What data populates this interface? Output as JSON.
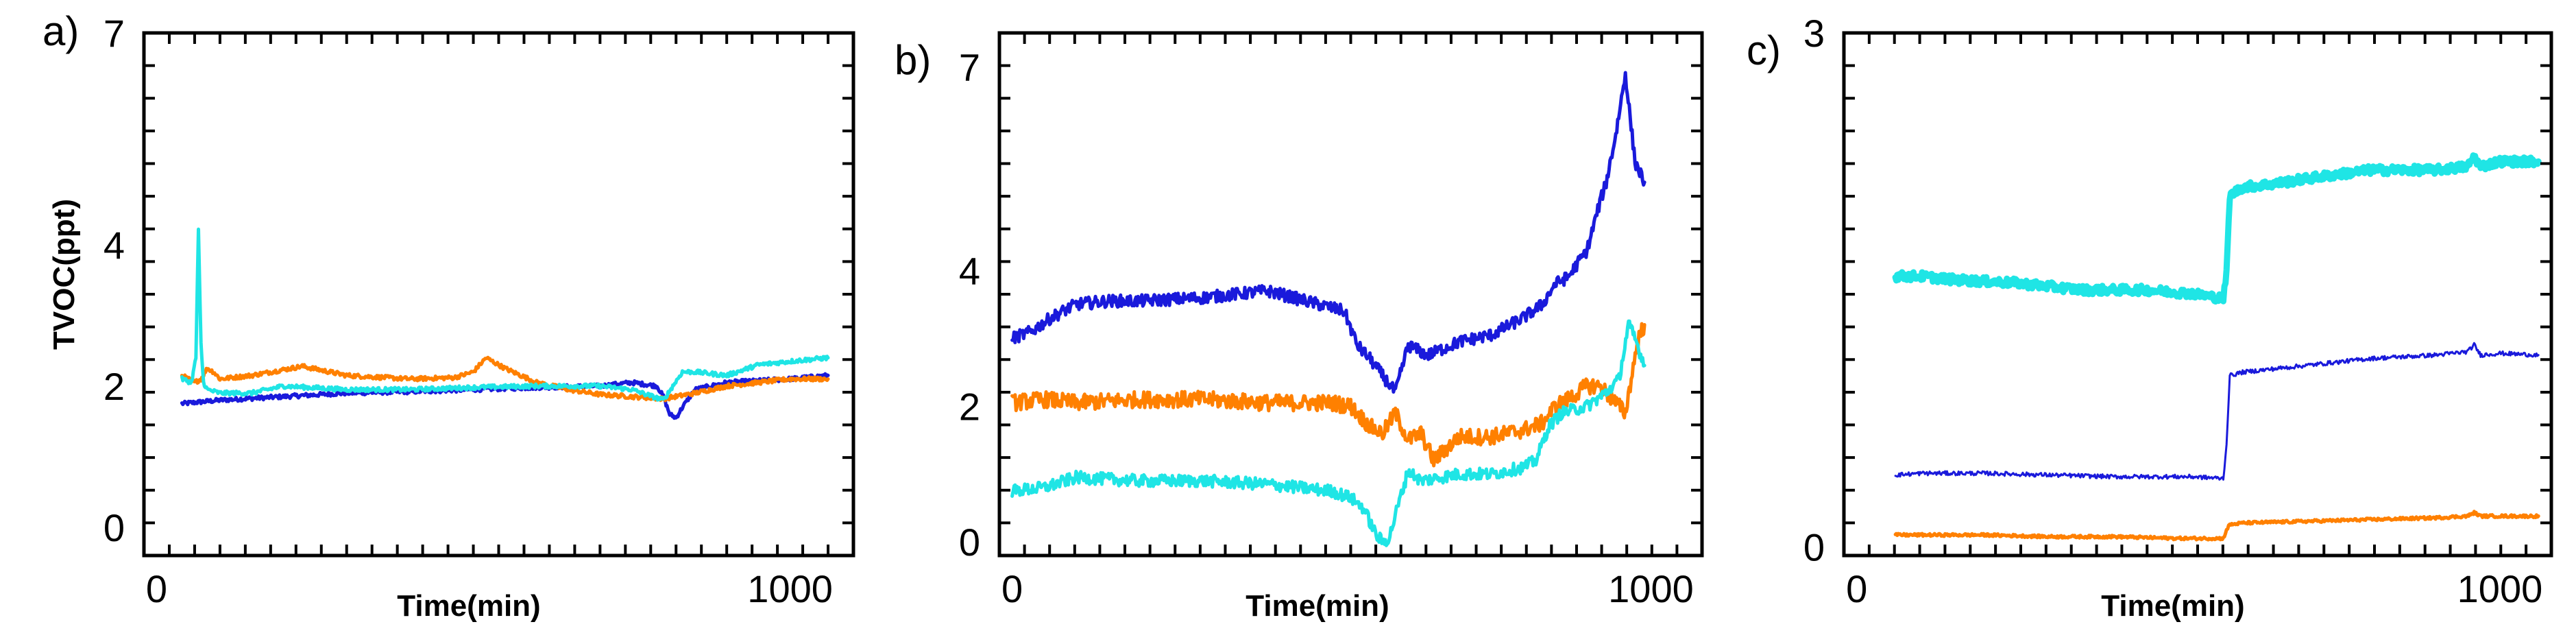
{
  "chart_data": [
    {
      "panel": "a)",
      "type": "line",
      "xlabel": "Time(min)",
      "ylabel": "TVOC(ppt)",
      "xlim": [
        -20,
        1100
      ],
      "ylim": [
        -0.4,
        7.0
      ],
      "xticks": [
        0,
        1000
      ],
      "yticks": [
        0,
        2,
        4,
        7
      ],
      "grid": false,
      "series": [
        {
          "color": "#1a1adb",
          "noise": 0.03,
          "width": 5,
          "x": [
            40,
            100,
            200,
            300,
            400,
            500,
            600,
            700,
            750,
            790,
            800,
            810,
            820,
            830,
            850,
            900,
            1000,
            1060
          ],
          "y": [
            1.75,
            1.8,
            1.85,
            1.9,
            1.92,
            1.95,
            1.98,
            2.0,
            2.05,
            2.0,
            1.85,
            1.6,
            1.55,
            1.7,
            1.95,
            2.05,
            2.1,
            2.15
          ]
        },
        {
          "color": "#ff8000",
          "noise": 0.03,
          "width": 5,
          "x": [
            40,
            60,
            70,
            80,
            90,
            100,
            150,
            230,
            300,
            400,
            470,
            500,
            520,
            550,
            600,
            650,
            700,
            750,
            800,
            850,
            900,
            1000,
            1060
          ],
          "y": [
            2.15,
            2.05,
            2.1,
            2.25,
            2.2,
            2.1,
            2.15,
            2.28,
            2.15,
            2.1,
            2.12,
            2.2,
            2.4,
            2.25,
            2.05,
            1.95,
            1.88,
            1.85,
            1.82,
            1.9,
            2.0,
            2.1,
            2.1
          ]
        },
        {
          "color": "#1fe5e5",
          "noise": 0.03,
          "width": 5,
          "x": [
            40,
            55,
            62,
            66,
            70,
            74,
            80,
            100,
            150,
            200,
            300,
            400,
            500,
            600,
            700,
            750,
            800,
            830,
            850,
            900,
            950,
            1000,
            1060
          ],
          "y": [
            2.1,
            2.05,
            2.4,
            4.2,
            2.6,
            2.05,
            1.95,
            1.9,
            1.9,
            2.0,
            1.95,
            1.95,
            1.98,
            2.0,
            2.0,
            1.95,
            1.8,
            2.2,
            2.2,
            2.15,
            2.3,
            2.35,
            2.4
          ]
        }
      ]
    },
    {
      "panel": "b)",
      "type": "line",
      "xlabel": "Time(min)",
      "ylabel": "",
      "xlim": [
        -20,
        1080
      ],
      "ylim": [
        -0.2,
        7.5
      ],
      "xticks": [
        0,
        1000
      ],
      "yticks": [
        0,
        2,
        4,
        7
      ],
      "grid": false,
      "series": [
        {
          "color": "#1a1adb",
          "noise": 0.09,
          "width": 5,
          "x": [
            0,
            30,
            60,
            100,
            150,
            200,
            300,
            400,
            500,
            520,
            540,
            560,
            580,
            600,
            620,
            650,
            700,
            750,
            800,
            830,
            850,
            870,
            900,
            920,
            930,
            945,
            960,
            975,
            990
          ],
          "y": [
            3.0,
            3.1,
            3.3,
            3.5,
            3.55,
            3.55,
            3.6,
            3.7,
            3.45,
            3.4,
            2.9,
            2.7,
            2.45,
            2.2,
            2.9,
            2.75,
            2.95,
            3.05,
            3.3,
            3.5,
            3.8,
            3.9,
            4.3,
            5.0,
            5.3,
            6.0,
            6.9,
            5.6,
            5.3
          ]
        },
        {
          "color": "#ff8000",
          "noise": 0.12,
          "width": 5,
          "x": [
            0,
            50,
            100,
            200,
            300,
            400,
            500,
            530,
            560,
            580,
            600,
            620,
            640,
            660,
            700,
            750,
            800,
            830,
            850,
            870,
            900,
            920,
            940,
            960,
            980,
            990
          ],
          "y": [
            2.05,
            2.1,
            2.05,
            2.1,
            2.1,
            2.05,
            2.05,
            2.0,
            1.7,
            1.6,
            1.9,
            1.5,
            1.6,
            1.2,
            1.55,
            1.55,
            1.65,
            1.75,
            2.0,
            2.1,
            2.3,
            2.3,
            2.1,
            1.9,
            3.0,
            3.2
          ]
        },
        {
          "color": "#1fe5e5",
          "noise": 0.09,
          "width": 5,
          "x": [
            0,
            50,
            100,
            200,
            300,
            400,
            500,
            530,
            550,
            570,
            580,
            590,
            600,
            620,
            640,
            700,
            750,
            800,
            820,
            840,
            860,
            900,
            930,
            950,
            965,
            975,
            990
          ],
          "y": [
            0.75,
            0.8,
            0.95,
            0.9,
            0.9,
            0.85,
            0.75,
            0.65,
            0.5,
            0.1,
            0.0,
            0.05,
            0.4,
            1.05,
            0.9,
            1.0,
            1.0,
            1.1,
            1.2,
            1.7,
            1.9,
            2.0,
            2.2,
            2.4,
            3.2,
            3.0,
            2.6
          ]
        }
      ]
    },
    {
      "panel": "c)",
      "type": "line",
      "xlabel": "Time(min)",
      "ylabel": "",
      "xlim": [
        -20,
        1080
      ],
      "ylim": [
        -0.05,
        3.0
      ],
      "xticks": [
        0,
        1000
      ],
      "yticks": [
        0,
        3
      ],
      "grid": false,
      "series": [
        {
          "color": "#1fe5e5",
          "noise": 0.025,
          "width": 9,
          "x": [
            60,
            100,
            150,
            200,
            250,
            300,
            350,
            400,
            450,
            520,
            570,
            575,
            580,
            600,
            650,
            700,
            800,
            900,
            950,
            960,
            970,
            1000,
            1060
          ],
          "y": [
            1.58,
            1.58,
            1.56,
            1.55,
            1.54,
            1.52,
            1.5,
            1.5,
            1.5,
            1.48,
            1.45,
            1.6,
            2.05,
            2.1,
            2.12,
            2.15,
            2.2,
            2.2,
            2.22,
            2.28,
            2.22,
            2.25,
            2.25
          ]
        },
        {
          "color": "#1a1adb",
          "noise": 0.012,
          "width": 3,
          "x": [
            60,
            100,
            200,
            300,
            400,
            450,
            520,
            570,
            575,
            580,
            600,
            650,
            700,
            800,
            900,
            950,
            960,
            970,
            1000,
            1060
          ],
          "y": [
            0.42,
            0.43,
            0.43,
            0.42,
            0.41,
            0.41,
            0.41,
            0.4,
            0.6,
            1.0,
            1.02,
            1.04,
            1.06,
            1.1,
            1.12,
            1.14,
            1.18,
            1.12,
            1.13,
            1.12
          ]
        },
        {
          "color": "#ff8000",
          "noise": 0.008,
          "width": 5,
          "x": [
            60,
            100,
            200,
            300,
            400,
            500,
            570,
            575,
            580,
            600,
            700,
            800,
            900,
            950,
            960,
            970,
            1000,
            1060
          ],
          "y": [
            0.07,
            0.07,
            0.07,
            0.06,
            0.06,
            0.05,
            0.05,
            0.1,
            0.13,
            0.14,
            0.15,
            0.16,
            0.17,
            0.18,
            0.2,
            0.18,
            0.18,
            0.18
          ]
        }
      ]
    }
  ]
}
